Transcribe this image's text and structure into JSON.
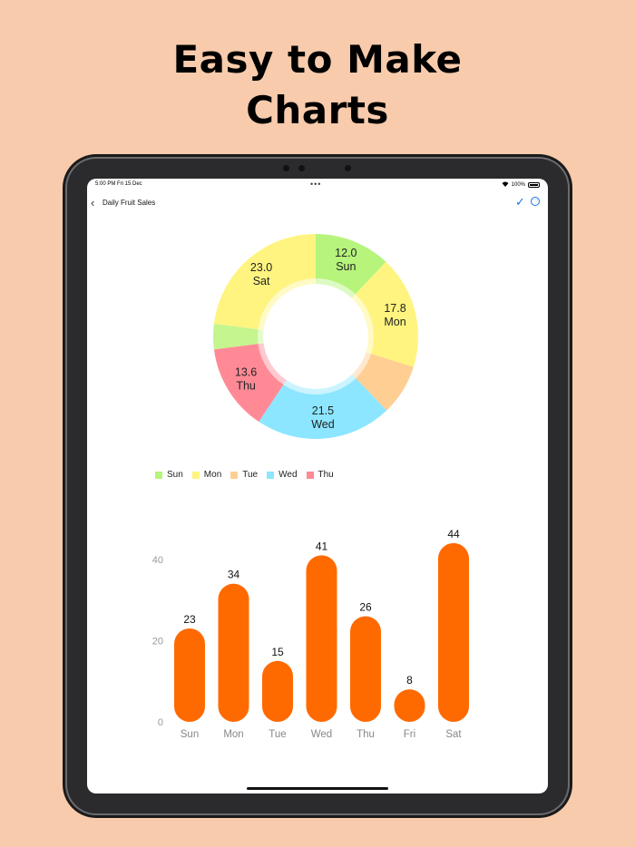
{
  "headline": {
    "line1": "Easy to Make",
    "line2": "Charts"
  },
  "status_bar": {
    "time": "5:00 PM  Fri 15 Dec",
    "battery": "100%"
  },
  "nav": {
    "title": "Daily Fruit Sales",
    "back_icon": "chevron-left-icon",
    "confirm_icon": "checkmark-icon",
    "more_icon": "ellipsis-circle-icon"
  },
  "colors": {
    "background": "#f8cbac",
    "bar": "#ff6a00",
    "accent": "#1a73e8"
  },
  "chart_data": [
    {
      "type": "pie",
      "categories": [
        "Sun",
        "Mon",
        "Tue",
        "Wed",
        "Thu",
        "Fri",
        "Sat"
      ],
      "values": [
        12.0,
        17.8,
        8,
        21.5,
        13.6,
        4,
        23.0
      ],
      "labels": [
        "12.0\nSun",
        "17.8\nMon",
        "",
        "21.5\nWed",
        "13.6\nThu",
        "",
        "23.0\nSat"
      ],
      "colors": [
        "#b6f47c",
        "#fff480",
        "#ffce92",
        "#8ce6ff",
        "#ff8a96",
        "#c5f58e",
        "#fff480"
      ],
      "legend": [
        "Sun",
        "Mon",
        "Tue",
        "Wed",
        "Thu"
      ],
      "legend_position": "bottom-left"
    },
    {
      "type": "bar",
      "categories": [
        "Sun",
        "Mon",
        "Tue",
        "Wed",
        "Thu",
        "Fri",
        "Sat"
      ],
      "values": [
        23,
        34,
        15,
        41,
        26,
        8,
        44
      ],
      "yticks": [
        0,
        20,
        40
      ],
      "ylim": [
        0,
        45
      ],
      "grid": false
    }
  ]
}
